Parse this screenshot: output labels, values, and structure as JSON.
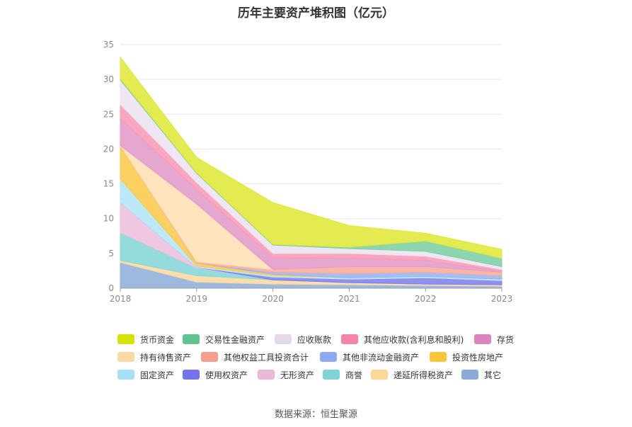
{
  "chart_data": {
    "type": "area",
    "title": "历年主要资产堆积图（亿元）",
    "x": [
      "2018",
      "2019",
      "2020",
      "2021",
      "2022",
      "2023"
    ],
    "ylim": [
      0,
      35
    ],
    "yticks": [
      "0",
      "5",
      "10",
      "15",
      "20",
      "25",
      "30",
      "35"
    ],
    "stacked": true,
    "grid": true,
    "legend_position": "bottom",
    "series": [
      {
        "name": "其它",
        "color": "#8fb0da",
        "values": [
          3.7,
          0.9,
          0.6,
          0.5,
          0.4,
          0.3
        ]
      },
      {
        "name": "递延所得税资产",
        "color": "#fcd9a0",
        "values": [
          0.3,
          0.9,
          0.6,
          0.3,
          0.2,
          0.2
        ]
      },
      {
        "name": "商誉",
        "color": "#87d6d6",
        "values": [
          4.0,
          1.1,
          0.0,
          0.0,
          0.0,
          0.0
        ]
      },
      {
        "name": "无形资产",
        "color": "#eebfdc",
        "values": [
          4.3,
          0.1,
          0.0,
          0.0,
          0.0,
          0.0
        ]
      },
      {
        "name": "使用权资产",
        "color": "#7f7fee",
        "values": [
          0.0,
          0.0,
          0.4,
          0.5,
          0.9,
          0.6
        ]
      },
      {
        "name": "固定资产",
        "color": "#b3e5f6",
        "values": [
          3.4,
          0.2,
          0.2,
          0.2,
          0.2,
          0.2
        ]
      },
      {
        "name": "投资性房地产",
        "color": "#fbc94a",
        "values": [
          4.8,
          0.4,
          0.2,
          0.0,
          0.0,
          0.0
        ]
      },
      {
        "name": "其他非流动金融资产",
        "color": "#99b3f5",
        "values": [
          0.0,
          0.0,
          0.3,
          0.6,
          0.6,
          0.5
        ]
      },
      {
        "name": "其他权益工具投资合计",
        "color": "#f9ab9b",
        "values": [
          0.0,
          0.2,
          0.4,
          1.0,
          0.8,
          0.5
        ]
      },
      {
        "name": "持有待售资产",
        "color": "#fde0b4",
        "values": [
          0.0,
          8.3,
          0.0,
          0.0,
          0.0,
          0.0
        ]
      },
      {
        "name": "存货",
        "color": "#e19bc8",
        "values": [
          3.9,
          2.1,
          1.7,
          1.2,
          0.9,
          0.1
        ]
      },
      {
        "name": "其他应收款(含利息和股利)",
        "color": "#f89ab5",
        "values": [
          2.0,
          1.0,
          0.6,
          0.7,
          0.6,
          0.3
        ]
      },
      {
        "name": "应收账款",
        "color": "#ece3f1",
        "values": [
          3.5,
          1.3,
          1.2,
          0.7,
          0.7,
          0.4
        ]
      },
      {
        "name": "交易性金融资产",
        "color": "#7ccfa4",
        "values": [
          0.2,
          0.1,
          0.1,
          0.2,
          1.5,
          1.2
        ]
      },
      {
        "name": "货币资金",
        "color": "#dfe838",
        "values": [
          3.1,
          2.2,
          6.0,
          3.1,
          1.1,
          1.3
        ]
      }
    ]
  },
  "legend": {
    "items": [
      {
        "label": "货币资金",
        "color": "#d6e300"
      },
      {
        "label": "交易性金融资产",
        "color": "#5fc38f"
      },
      {
        "label": "应收账款",
        "color": "#e6d8ec"
      },
      {
        "label": "其他应收款(含利息和股利)",
        "color": "#f684a8"
      },
      {
        "label": "存货",
        "color": "#da86be"
      },
      {
        "label": "持有待售资产",
        "color": "#fdd9a6"
      },
      {
        "label": "其他权益工具投资合计",
        "color": "#f89e8d"
      },
      {
        "label": "其他非流动金融资产",
        "color": "#8ea9f5"
      },
      {
        "label": "投资性房地产",
        "color": "#fbc53a"
      },
      {
        "label": "固定资产",
        "color": "#a7e0f6"
      },
      {
        "label": "使用权资产",
        "color": "#7373ee"
      },
      {
        "label": "无形资产",
        "color": "#eab8d8"
      },
      {
        "label": "商誉",
        "color": "#7dd3d5"
      },
      {
        "label": "递延所得税资产",
        "color": "#fcd79a"
      },
      {
        "label": "其它",
        "color": "#8aabd8"
      }
    ]
  },
  "source": "数据来源：恒生聚源"
}
